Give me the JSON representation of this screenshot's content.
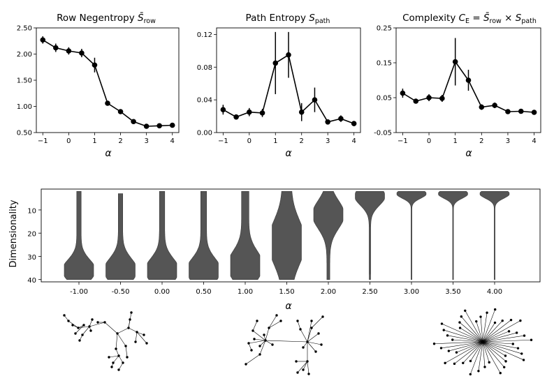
{
  "chart_data": [
    {
      "type": "line",
      "title_main": "Row Negentropy ",
      "title_sym": "S̄",
      "title_sub": "row",
      "xlabel": "α",
      "x": [
        -1,
        -0.5,
        0,
        0.5,
        1,
        1.5,
        2,
        2.5,
        3,
        3.5,
        4
      ],
      "y": [
        2.27,
        2.12,
        2.06,
        2.02,
        1.79,
        1.06,
        0.9,
        0.71,
        0.62,
        0.63,
        0.64
      ],
      "err": [
        0.07,
        0.08,
        0.07,
        0.08,
        0.14,
        0.03,
        0.02,
        0.02,
        0.02,
        0.02,
        0.02
      ],
      "xlim": [
        -1.25,
        4.25
      ],
      "ylim": [
        0.5,
        2.5
      ],
      "xticks": [
        -1,
        0,
        1,
        2,
        3,
        4
      ],
      "xtick_labels": [
        "−1",
        "0",
        "1",
        "2",
        "3",
        "4"
      ],
      "yticks": [
        0.5,
        1.0,
        1.5,
        2.0,
        2.5
      ],
      "ytick_labels": [
        "0.50",
        "1.00",
        "1.50",
        "2.00",
        "2.50"
      ]
    },
    {
      "type": "line",
      "title_main": "Path Entropy ",
      "title_sym": "S",
      "title_sub": "path",
      "xlabel": "α",
      "x": [
        -1,
        -0.5,
        0,
        0.5,
        1,
        1.5,
        2,
        2.5,
        3,
        3.5,
        4
      ],
      "y": [
        0.028,
        0.019,
        0.025,
        0.024,
        0.085,
        0.095,
        0.025,
        0.04,
        0.013,
        0.017,
        0.011
      ],
      "err": [
        0.006,
        0.003,
        0.005,
        0.005,
        0.038,
        0.028,
        0.011,
        0.015,
        0.003,
        0.004,
        0.003
      ],
      "xlim": [
        -1.25,
        4.25
      ],
      "ylim": [
        0,
        0.128
      ],
      "xticks": [
        -1,
        0,
        1,
        2,
        3,
        4
      ],
      "xtick_labels": [
        "−1",
        "0",
        "1",
        "2",
        "3",
        "4"
      ],
      "yticks": [
        0,
        0.04,
        0.08,
        0.12
      ],
      "ytick_labels": [
        "0.00",
        "0.04",
        "0.08",
        "0.12"
      ]
    },
    {
      "type": "line",
      "title_main": "Complexity ",
      "title_sym": "C",
      "title_sub": "E",
      "title_rest_1": " = ",
      "title_sym_2": "S̄",
      "title_sub_2": "row",
      "title_rest_2": " × ",
      "title_sym_3": "S",
      "title_sub_3": "path",
      "xlabel": "α",
      "x": [
        -1,
        -0.5,
        0,
        0.5,
        1,
        1.5,
        2,
        2.5,
        3,
        3.5,
        4
      ],
      "y": [
        0.063,
        0.04,
        0.05,
        0.048,
        0.153,
        0.1,
        0.023,
        0.028,
        0.01,
        0.011,
        0.008
      ],
      "err": [
        0.013,
        0.005,
        0.01,
        0.01,
        0.068,
        0.03,
        0.008,
        0.008,
        0.003,
        0.003,
        0.003
      ],
      "xlim": [
        -1.25,
        4.25
      ],
      "ylim": [
        -0.05,
        0.25
      ],
      "xticks": [
        -1,
        0,
        1,
        2,
        3,
        4
      ],
      "xtick_labels": [
        "−1",
        "0",
        "1",
        "2",
        "3",
        "4"
      ],
      "yticks": [
        -0.05,
        0.05,
        0.15,
        0.25
      ],
      "ytick_labels": [
        "-0.05",
        "0.05",
        "0.15",
        "0.25"
      ]
    },
    {
      "type": "violin",
      "ylabel": "Dimensionality",
      "xlabel": "α",
      "categories": [
        "-1.00",
        "-0.50",
        "0.00",
        "0.50",
        "1.00",
        "1.50",
        "2.00",
        "2.50",
        "3.00",
        "3.50",
        "4.00"
      ],
      "ylim": [
        1,
        41
      ],
      "y_inverted": true,
      "yticks": [
        10,
        20,
        30,
        40
      ],
      "ytick_labels": [
        "10",
        "20",
        "30",
        "40"
      ],
      "distributions": [
        {
          "min": 2,
          "max": 40,
          "center": 36,
          "spread": 4.5,
          "base": 0.15
        },
        {
          "min": 3,
          "max": 40,
          "center": 36,
          "spread": 5,
          "base": 0.15
        },
        {
          "min": 2,
          "max": 40,
          "center": 36,
          "spread": 5,
          "base": 0.18
        },
        {
          "min": 2,
          "max": 40,
          "center": 36,
          "spread": 5,
          "base": 0.2
        },
        {
          "min": 2,
          "max": 40,
          "center": 34,
          "spread": 6,
          "base": 0.25
        },
        {
          "min": 2,
          "max": 40,
          "center": 24,
          "spread": 9,
          "base": 0.3
        },
        {
          "min": 2,
          "max": 40,
          "center": 12,
          "spread": 6,
          "base": 0.1
        },
        {
          "min": 2,
          "max": 40,
          "center": 4,
          "spread": 4,
          "base": 0.05
        },
        {
          "min": 2,
          "max": 40,
          "center": 3,
          "spread": 2,
          "base": 0.02
        },
        {
          "min": 2,
          "max": 40,
          "center": 3,
          "spread": 2,
          "base": 0.02
        },
        {
          "min": 2,
          "max": 40,
          "center": 3,
          "spread": 2,
          "base": 0.02
        }
      ]
    }
  ],
  "colors": {
    "line": "#000000",
    "violin_fill": "#555555",
    "violin_edge": "#3a3a3a"
  },
  "network_icons": [
    "tree-network-icon",
    "two-cluster-network-icon",
    "star-network-icon"
  ]
}
